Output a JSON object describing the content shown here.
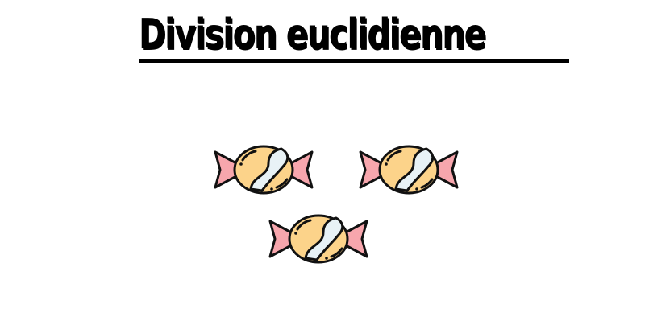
{
  "page": {
    "title": "Division euclidienne"
  },
  "candies": {
    "count": 3,
    "icon": "wrapped-candy-icon",
    "colors": {
      "body": "#fcd38a",
      "wrapper": "#f7a6ad",
      "stripe": "#e8f2f6",
      "outline": "#111111"
    }
  }
}
